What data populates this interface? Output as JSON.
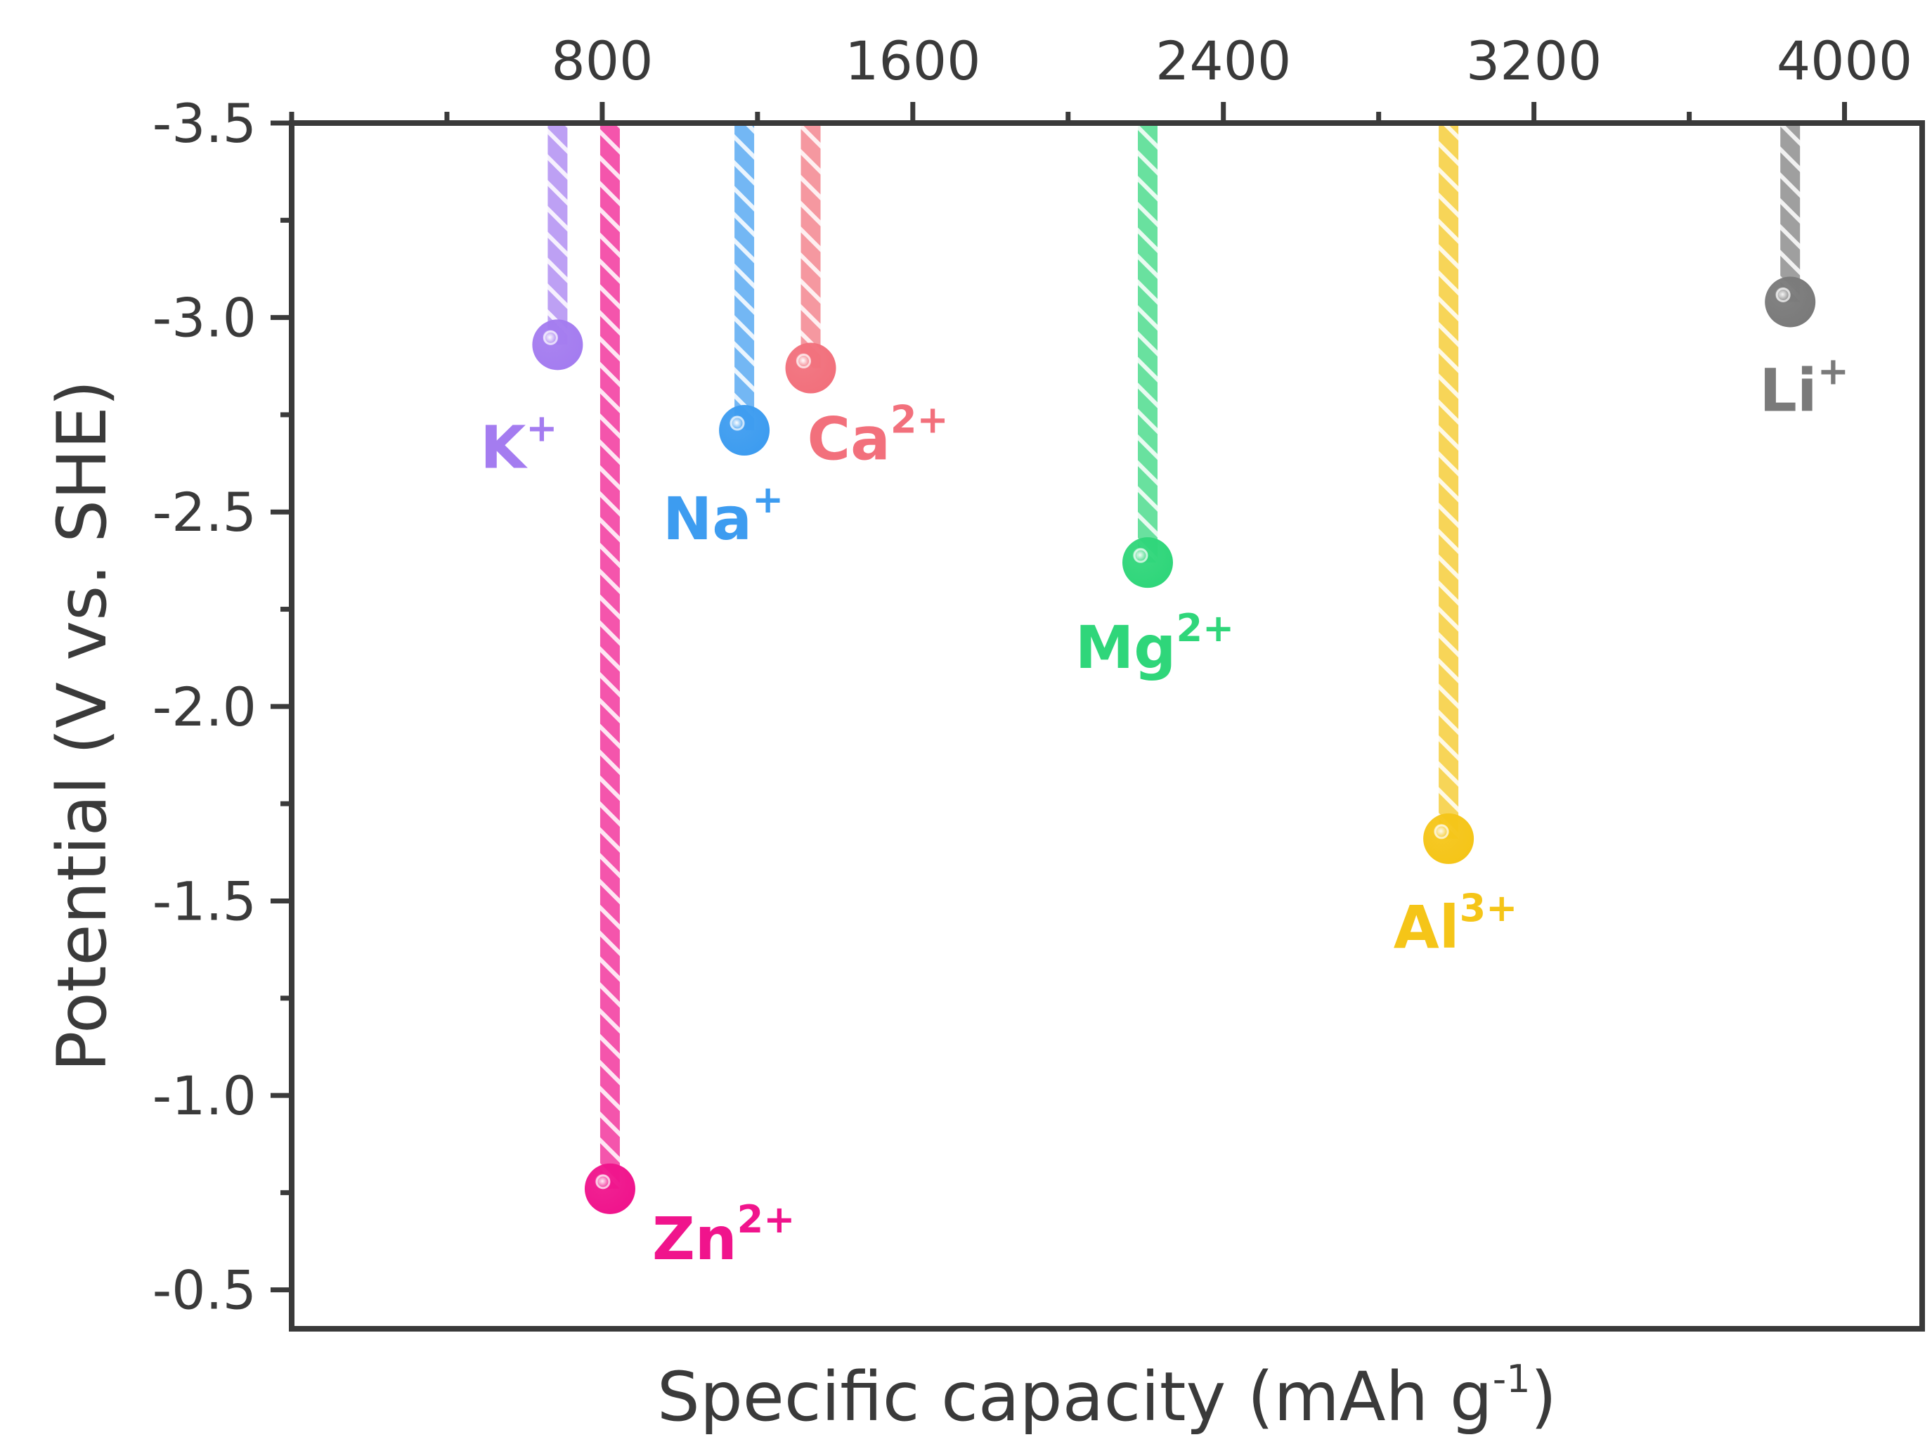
{
  "chart_data": {
    "type": "lollipop",
    "xlabel": "Specific capacity (mAh g",
    "xlabel_sup": "-1",
    "xlabel_close": ")",
    "ylabel": "Potential (V vs. SHE)",
    "xlim": [
      0,
      4200
    ],
    "ylim": [
      -3.5,
      -0.4
    ],
    "x_axis_position": "top",
    "y_inverted": true,
    "x_ticks": [
      800,
      1600,
      2400,
      3200,
      4000
    ],
    "x_tick_labels": [
      "800",
      "1600",
      "2400",
      "3200",
      "4000"
    ],
    "y_ticks": [
      -3.5,
      -3.0,
      -2.5,
      -2.0,
      -1.5,
      -1.0,
      -0.5
    ],
    "y_tick_labels": [
      "-3.5",
      "-3.0",
      "-2.5",
      "-2.0",
      "-1.5",
      "-1.0",
      "-0.5"
    ],
    "grid": false,
    "points": [
      {
        "ion": "K",
        "charge": "+",
        "x": 685,
        "y": -2.93,
        "color": "#a47cf0"
      },
      {
        "ion": "Zn",
        "charge": "2+",
        "x": 820,
        "y": -0.76,
        "color": "#f0148c"
      },
      {
        "ion": "Na",
        "charge": "+",
        "x": 1166,
        "y": -2.71,
        "color": "#3d9cf0"
      },
      {
        "ion": "Ca",
        "charge": "2+",
        "x": 1337,
        "y": -2.87,
        "color": "#f2707c"
      },
      {
        "ion": "Mg",
        "charge": "2+",
        "x": 2205,
        "y": -2.37,
        "color": "#2fd67a"
      },
      {
        "ion": "Al",
        "charge": "3+",
        "x": 2980,
        "y": -1.66,
        "color": "#f5c518"
      },
      {
        "ion": "Li",
        "charge": "+",
        "x": 3860,
        "y": -3.04,
        "color": "#7a7a7a"
      }
    ]
  }
}
